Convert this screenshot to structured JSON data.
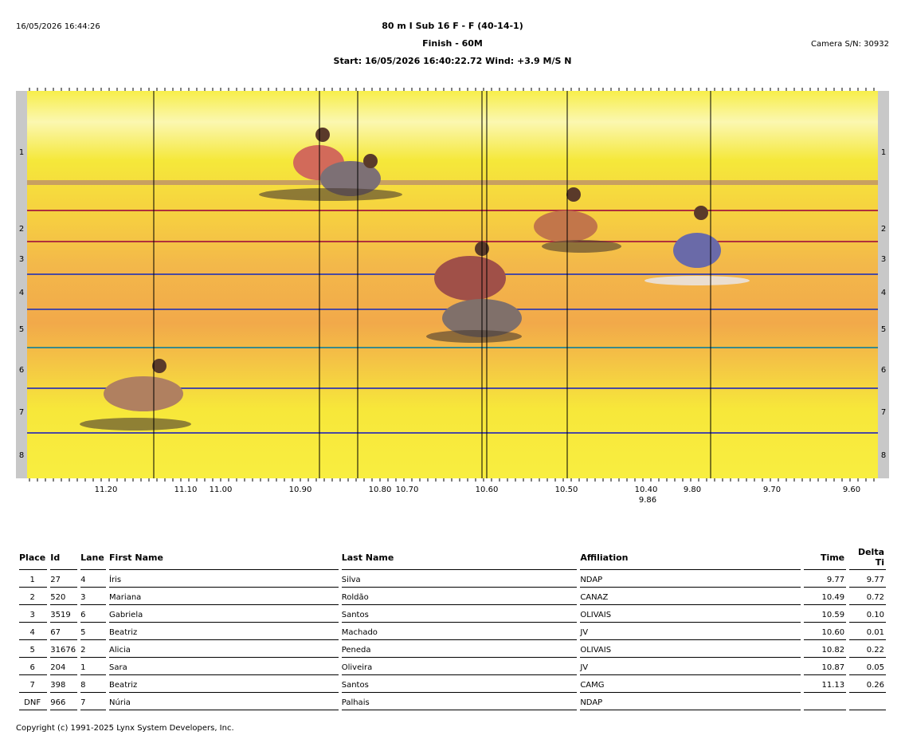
{
  "header": {
    "printed_at": "16/05/2026 16:44:26",
    "event_title": "80 m I Sub 16 F - F (40-14-1)",
    "subtitle": "Finish - 60M",
    "start_line": "Start: 16/05/2026 16:40:22.72    Wind: +3.9 M/S N",
    "camera": "Camera S/N: 30932"
  },
  "photo": {
    "lanes": [
      "1",
      "2",
      "3",
      "4",
      "5",
      "6",
      "7",
      "8"
    ],
    "time_ticks": [
      "11.20",
      "11.10",
      "11.00",
      "10.90",
      "10.80",
      "10.70",
      "10.60",
      "10.50",
      "10.40",
      "9.80",
      "9.70",
      "9.60"
    ],
    "marker_label": "9.86",
    "colors": {
      "yellow": "#f7ea3a",
      "orange": "#f2b544",
      "lane_line_blue": "#4a4aa0",
      "lane_line_red": "#b0303c",
      "side_bar": "#c8c8c8"
    }
  },
  "results": {
    "columns": [
      "Place",
      "Id",
      "Lane",
      "First Name",
      "Last Name",
      "Affiliation",
      "Time",
      "Delta Ti"
    ],
    "rows": [
      {
        "place": "1",
        "id": "27",
        "lane": "4",
        "first": "Íris",
        "last": "Silva",
        "aff": "NDAP",
        "time": "9.77",
        "delta": "9.77"
      },
      {
        "place": "2",
        "id": "520",
        "lane": "3",
        "first": "Mariana",
        "last": "Roldão",
        "aff": "CANAZ",
        "time": "10.49",
        "delta": "0.72"
      },
      {
        "place": "3",
        "id": "3519",
        "lane": "6",
        "first": "Gabriela",
        "last": "Santos",
        "aff": "OLIVAIS",
        "time": "10.59",
        "delta": "0.10"
      },
      {
        "place": "4",
        "id": "67",
        "lane": "5",
        "first": "Beatriz",
        "last": "Machado",
        "aff": "JV",
        "time": "10.60",
        "delta": "0.01"
      },
      {
        "place": "5",
        "id": "31676",
        "lane": "2",
        "first": "Alicia",
        "last": "Peneda",
        "aff": "OLIVAIS",
        "time": "10.82",
        "delta": "0.22"
      },
      {
        "place": "6",
        "id": "204",
        "lane": "1",
        "first": "Sara",
        "last": "Oliveira",
        "aff": "JV",
        "time": "10.87",
        "delta": "0.05"
      },
      {
        "place": "7",
        "id": "398",
        "lane": "8",
        "first": "Beatriz",
        "last": "Santos",
        "aff": "CAMG",
        "time": "11.13",
        "delta": "0.26"
      },
      {
        "place": "DNF",
        "id": "966",
        "lane": "7",
        "first": "Núria",
        "last": "Palhais",
        "aff": "NDAP",
        "time": "",
        "delta": ""
      }
    ]
  },
  "footer": {
    "copyright": "Copyright (c) 1991-2025 Lynx System Developers, Inc."
  }
}
